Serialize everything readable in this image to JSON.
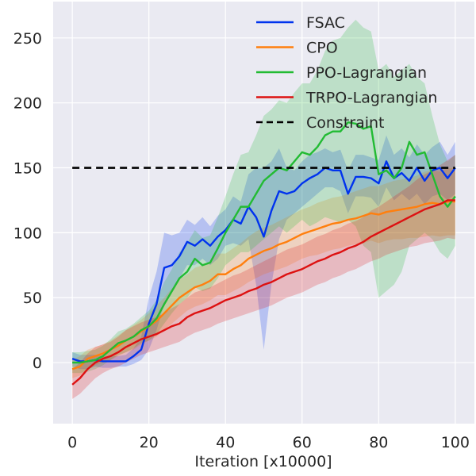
{
  "chart_data": {
    "type": "line",
    "title": "",
    "xlabel": "Iteration [x10000]",
    "ylabel": "",
    "xlim": [
      -5,
      105
    ],
    "ylim": [
      -47,
      278
    ],
    "xticks": [
      0,
      20,
      40,
      60,
      80,
      100
    ],
    "yticks": [
      0,
      50,
      100,
      150,
      200,
      250
    ],
    "grid": true,
    "legend_position": "top-right",
    "background": "#eaeaf2",
    "series": [
      {
        "name": "FSAC",
        "color": "#0033ee",
        "x": [
          0,
          2,
          4,
          6,
          8,
          10,
          12,
          14,
          16,
          18,
          20,
          22,
          24,
          26,
          28,
          30,
          32,
          34,
          36,
          38,
          40,
          42,
          44,
          46,
          48,
          50,
          52,
          54,
          56,
          58,
          60,
          62,
          64,
          66,
          68,
          70,
          72,
          74,
          76,
          78,
          80,
          82,
          84,
          86,
          88,
          90,
          92,
          94,
          96,
          98,
          100
        ],
        "y": [
          3,
          1,
          1,
          2,
          1,
          1,
          1,
          1,
          5,
          10,
          30,
          45,
          73,
          75,
          82,
          93,
          90,
          95,
          90,
          97,
          102,
          110,
          107,
          120,
          112,
          97,
          117,
          132,
          130,
          132,
          138,
          142,
          145,
          150,
          148,
          148,
          130,
          143,
          143,
          142,
          138,
          155,
          142,
          146,
          140,
          150,
          140,
          148,
          150,
          142,
          150
        ],
        "lower": [
          -3,
          -5,
          -5,
          -3,
          -4,
          -4,
          -3,
          -3,
          -1,
          2,
          10,
          25,
          45,
          55,
          65,
          75,
          75,
          80,
          75,
          80,
          90,
          92,
          90,
          95,
          60,
          10,
          60,
          95,
          110,
          115,
          120,
          125,
          130,
          135,
          135,
          132,
          115,
          128,
          128,
          127,
          120,
          135,
          125,
          130,
          125,
          130,
          122,
          128,
          130,
          125,
          130
        ],
        "upper": [
          8,
          6,
          6,
          6,
          5,
          5,
          5,
          6,
          11,
          20,
          50,
          70,
          100,
          98,
          100,
          110,
          106,
          112,
          105,
          113,
          118,
          128,
          124,
          145,
          150,
          150,
          155,
          165,
          150,
          148,
          155,
          160,
          162,
          165,
          162,
          164,
          148,
          160,
          160,
          158,
          156,
          175,
          160,
          165,
          158,
          168,
          160,
          166,
          170,
          160,
          170
        ]
      },
      {
        "name": "CPO",
        "color": "#ff7f0e",
        "x": [
          0,
          2,
          4,
          6,
          8,
          10,
          12,
          14,
          16,
          18,
          20,
          22,
          24,
          26,
          28,
          30,
          32,
          34,
          36,
          38,
          40,
          42,
          44,
          46,
          48,
          50,
          52,
          54,
          56,
          58,
          60,
          62,
          64,
          66,
          68,
          70,
          72,
          74,
          76,
          78,
          80,
          82,
          84,
          86,
          88,
          90,
          92,
          94,
          96,
          98,
          100
        ],
        "y": [
          -5,
          -3,
          3,
          5,
          7,
          10,
          13,
          17,
          20,
          24,
          28,
          32,
          38,
          44,
          50,
          54,
          58,
          60,
          63,
          68,
          68,
          72,
          75,
          80,
          83,
          86,
          88,
          91,
          93,
          96,
          99,
          101,
          103,
          105,
          107,
          108,
          110,
          111,
          113,
          115,
          114,
          116,
          117,
          118,
          119,
          120,
          122,
          123,
          122,
          124,
          124
        ],
        "lower": [
          -12,
          -10,
          -5,
          -2,
          0,
          2,
          5,
          8,
          10,
          14,
          17,
          20,
          25,
          30,
          35,
          40,
          43,
          45,
          48,
          52,
          52,
          55,
          58,
          62,
          65,
          68,
          70,
          72,
          74,
          77,
          80,
          82,
          83,
          85,
          87,
          88,
          90,
          91,
          92,
          94,
          92,
          94,
          95,
          95,
          96,
          96,
          97,
          98,
          97,
          98,
          98
        ],
        "upper": [
          2,
          5,
          10,
          12,
          14,
          17,
          21,
          25,
          29,
          33,
          38,
          44,
          50,
          57,
          64,
          68,
          73,
          75,
          78,
          84,
          84,
          88,
          92,
          97,
          101,
          104,
          106,
          109,
          112,
          115,
          118,
          120,
          123,
          125,
          127,
          128,
          130,
          132,
          134,
          136,
          136,
          138,
          140,
          141,
          142,
          144,
          147,
          148,
          147,
          150,
          150
        ]
      },
      {
        "name": "PPO-Lagrangian",
        "color": "#22bb33",
        "x": [
          0,
          2,
          4,
          6,
          8,
          10,
          12,
          14,
          16,
          18,
          20,
          22,
          24,
          26,
          28,
          30,
          32,
          34,
          36,
          38,
          40,
          42,
          44,
          46,
          48,
          50,
          52,
          54,
          56,
          58,
          60,
          62,
          64,
          66,
          68,
          70,
          72,
          74,
          76,
          78,
          80,
          82,
          84,
          86,
          88,
          90,
          92,
          94,
          96,
          98,
          100
        ],
        "y": [
          0,
          0,
          1,
          2,
          5,
          10,
          15,
          17,
          20,
          25,
          28,
          34,
          45,
          55,
          65,
          70,
          80,
          75,
          77,
          88,
          100,
          110,
          120,
          120,
          130,
          140,
          145,
          150,
          148,
          155,
          162,
          160,
          166,
          175,
          178,
          178,
          185,
          184,
          180,
          182,
          145,
          148,
          142,
          150,
          170,
          160,
          162,
          145,
          128,
          120,
          128
        ],
        "lower": [
          -8,
          -8,
          -7,
          -5,
          -2,
          2,
          6,
          8,
          11,
          15,
          17,
          22,
          30,
          38,
          45,
          50,
          58,
          55,
          57,
          65,
          75,
          80,
          85,
          85,
          90,
          95,
          100,
          105,
          100,
          105,
          110,
          105,
          108,
          112,
          110,
          108,
          110,
          105,
          90,
          85,
          50,
          55,
          60,
          70,
          90,
          95,
          100,
          95,
          85,
          80,
          90
        ],
        "upper": [
          8,
          8,
          9,
          10,
          13,
          18,
          24,
          26,
          30,
          35,
          40,
          48,
          62,
          72,
          85,
          92,
          102,
          96,
          98,
          112,
          128,
          145,
          160,
          162,
          175,
          190,
          195,
          202,
          200,
          208,
          215,
          215,
          225,
          240,
          248,
          250,
          258,
          264,
          258,
          255,
          225,
          230,
          220,
          225,
          230,
          220,
          215,
          190,
          168,
          155,
          160
        ]
      },
      {
        "name": "TRPO-Lagrangian",
        "color": "#dd1111",
        "x": [
          0,
          2,
          4,
          6,
          8,
          10,
          12,
          14,
          16,
          18,
          20,
          22,
          24,
          26,
          28,
          30,
          32,
          34,
          36,
          38,
          40,
          42,
          44,
          46,
          48,
          50,
          52,
          54,
          56,
          58,
          60,
          62,
          64,
          66,
          68,
          70,
          72,
          74,
          76,
          78,
          80,
          82,
          84,
          86,
          88,
          90,
          92,
          94,
          96,
          98,
          100
        ],
        "y": [
          -17,
          -12,
          -5,
          0,
          3,
          5,
          8,
          12,
          15,
          18,
          20,
          22,
          25,
          28,
          30,
          35,
          38,
          40,
          42,
          45,
          48,
          50,
          52,
          55,
          57,
          60,
          62,
          65,
          68,
          70,
          72,
          75,
          78,
          80,
          83,
          85,
          88,
          90,
          93,
          97,
          100,
          103,
          106,
          109,
          112,
          115,
          118,
          120,
          122,
          125,
          125
        ],
        "lower": [
          -28,
          -24,
          -18,
          -12,
          -8,
          -5,
          -3,
          0,
          3,
          6,
          8,
          10,
          12,
          14,
          16,
          20,
          23,
          25,
          27,
          30,
          32,
          34,
          36,
          38,
          40,
          42,
          44,
          47,
          50,
          52,
          54,
          57,
          60,
          62,
          65,
          67,
          70,
          72,
          75,
          78,
          80,
          83,
          85,
          87,
          89,
          90,
          92,
          93,
          94,
          96,
          95
        ],
        "upper": [
          -5,
          0,
          7,
          12,
          14,
          16,
          20,
          25,
          28,
          31,
          33,
          35,
          38,
          42,
          45,
          50,
          54,
          56,
          58,
          61,
          64,
          67,
          69,
          72,
          75,
          78,
          81,
          84,
          87,
          89,
          91,
          94,
          97,
          99,
          102,
          104,
          107,
          109,
          112,
          117,
          120,
          124,
          128,
          132,
          136,
          141,
          145,
          148,
          152,
          156,
          160
        ]
      }
    ],
    "reference_lines": [
      {
        "name": "Constraint",
        "y": 150,
        "x_start": 0,
        "x_end": 100,
        "color": "#000000",
        "style": "dashed"
      }
    ]
  }
}
